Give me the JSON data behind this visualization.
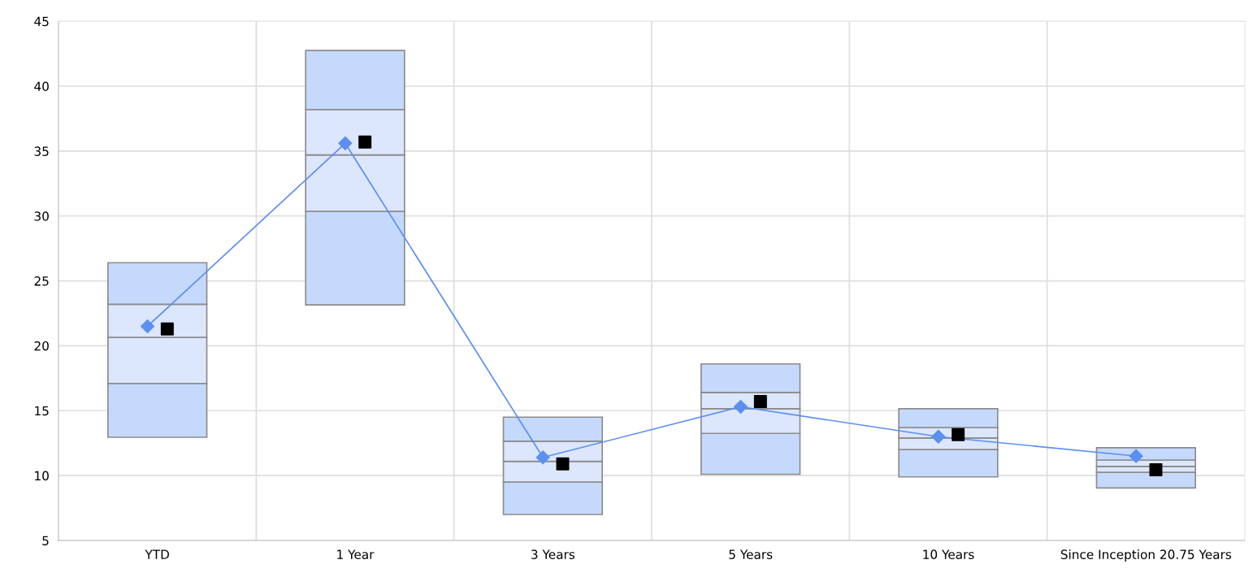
{
  "chart_data": {
    "type": "bar",
    "categories": [
      "YTD",
      "1 Year",
      "3 Years",
      "5 Years",
      "10 Years",
      "Since Inception 20.75 Years"
    ],
    "ylim": [
      5,
      45
    ],
    "yticks": [
      5,
      10,
      15,
      20,
      25,
      30,
      35,
      40,
      45
    ],
    "grid": true,
    "series": [
      {
        "color": "#c5d9fd",
        "base": [
          12.95,
          23.15,
          7.0,
          10.1,
          9.9,
          9.05
        ],
        "values": [
          4.15,
          7.2,
          2.5,
          3.15,
          2.1,
          1.2
        ]
      },
      {
        "color": "#dce6fd",
        "base": [
          17.1,
          30.35,
          9.5,
          13.25,
          12.0,
          10.25
        ],
        "values": [
          3.55,
          4.35,
          1.6,
          1.9,
          0.9,
          0.45
        ]
      },
      {
        "color": "#dce6fd",
        "base": [
          20.65,
          34.7,
          11.1,
          15.15,
          12.9,
          10.7
        ],
        "values": [
          2.55,
          3.5,
          1.55,
          1.25,
          0.8,
          0.5
        ]
      },
      {
        "color": "#c5d9fd",
        "base": [
          23.2,
          38.2,
          12.65,
          16.4,
          13.7,
          11.2
        ],
        "values": [
          3.2,
          4.55,
          1.85,
          2.2,
          1.45,
          0.95
        ]
      },
      {
        "type": "line",
        "color": "#5b8ff0",
        "marker": "diamond",
        "values": [
          21.5,
          35.6,
          11.4,
          15.3,
          13.0,
          11.5
        ]
      },
      {
        "type": "scatter",
        "color": "#000000",
        "marker": "square",
        "x": [
          "YTD",
          "1 Year",
          "3 Years",
          "5 Years",
          "10 Years",
          "Since Inception 20.75 Years"
        ],
        "values": [
          21.3,
          35.7,
          10.9,
          15.7,
          13.15,
          10.45
        ]
      }
    ]
  }
}
